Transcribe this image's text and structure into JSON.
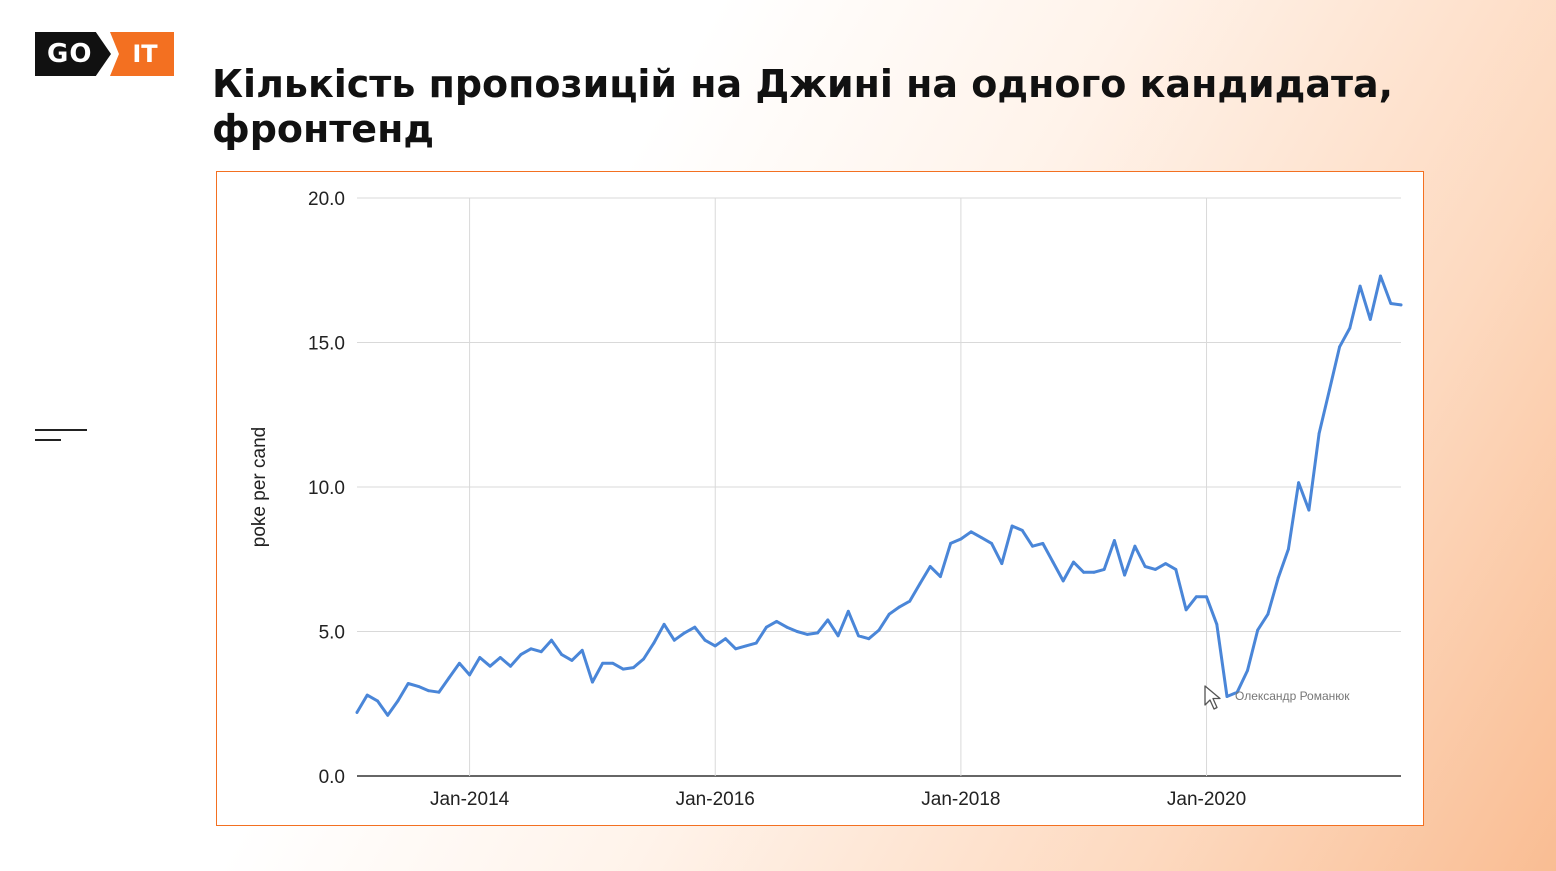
{
  "logo": {
    "left": "GO",
    "right": "IT"
  },
  "title": "Кількість пропозицій на Джині на одного кандидата, фронтенд",
  "colors": {
    "accent": "#f37021",
    "line": "#4a86d8",
    "grid": "#d9d9d9"
  },
  "chart_data": {
    "type": "line",
    "title": "",
    "xlabel": "",
    "ylabel": "poke per cand",
    "ylim": [
      0,
      20
    ],
    "xlim": [
      "2013-02",
      "2021-08"
    ],
    "y_ticks": [
      "0.0",
      "5.0",
      "10.0",
      "15.0",
      "20.0"
    ],
    "x_ticks": [
      {
        "label": "Jan-2014",
        "date": "2014-01"
      },
      {
        "label": "Jan-2016",
        "date": "2016-01"
      },
      {
        "label": "Jan-2018",
        "date": "2018-01"
      },
      {
        "label": "Jan-2020",
        "date": "2020-01"
      }
    ],
    "grid": true,
    "legend": "none",
    "series": [
      {
        "x": [
          "2013-02",
          "2013-03",
          "2013-04",
          "2013-05",
          "2013-06",
          "2013-07",
          "2013-08",
          "2013-09",
          "2013-10",
          "2013-11",
          "2013-12",
          "2014-01",
          "2014-02",
          "2014-03",
          "2014-04",
          "2014-05",
          "2014-06",
          "2014-07",
          "2014-08",
          "2014-09",
          "2014-10",
          "2014-11",
          "2014-12",
          "2015-01",
          "2015-02",
          "2015-03",
          "2015-04",
          "2015-05",
          "2015-06",
          "2015-07",
          "2015-08",
          "2015-09",
          "2015-10",
          "2015-11",
          "2015-12",
          "2016-01",
          "2016-02",
          "2016-03",
          "2016-04",
          "2016-05",
          "2016-06",
          "2016-07",
          "2016-08",
          "2016-09",
          "2016-10",
          "2016-11",
          "2016-12",
          "2017-01",
          "2017-02",
          "2017-03",
          "2017-04",
          "2017-05",
          "2017-06",
          "2017-07",
          "2017-08",
          "2017-09",
          "2017-10",
          "2017-11",
          "2017-12",
          "2018-01",
          "2018-02",
          "2018-03",
          "2018-04",
          "2018-05",
          "2018-06",
          "2018-07",
          "2018-08",
          "2018-09",
          "2018-10",
          "2018-11",
          "2018-12",
          "2019-01",
          "2019-02",
          "2019-03",
          "2019-04",
          "2019-05",
          "2019-06",
          "2019-07",
          "2019-08",
          "2019-09",
          "2019-10",
          "2019-11",
          "2019-12",
          "2020-01",
          "2020-02",
          "2020-03",
          "2020-04",
          "2020-05",
          "2020-06",
          "2020-07",
          "2020-08",
          "2020-09",
          "2020-10",
          "2020-11",
          "2020-12",
          "2021-01",
          "2021-02",
          "2021-03",
          "2021-04",
          "2021-05",
          "2021-06",
          "2021-07",
          "2021-08"
        ],
        "y": [
          2.2,
          2.8,
          2.6,
          2.1,
          2.6,
          3.2,
          3.1,
          2.95,
          2.9,
          3.4,
          3.9,
          3.5,
          4.1,
          3.8,
          4.1,
          3.8,
          4.2,
          4.4,
          4.3,
          4.7,
          4.2,
          4.0,
          4.35,
          3.25,
          3.9,
          3.9,
          3.7,
          3.75,
          4.05,
          4.6,
          5.25,
          4.7,
          4.95,
          5.15,
          4.7,
          4.5,
          4.75,
          4.4,
          4.5,
          4.6,
          5.15,
          5.35,
          5.15,
          5.0,
          4.9,
          4.95,
          5.4,
          4.85,
          5.7,
          4.85,
          4.75,
          5.05,
          5.6,
          5.85,
          6.05,
          6.65,
          7.25,
          6.9,
          8.05,
          8.2,
          8.45,
          8.25,
          8.05,
          7.35,
          8.65,
          8.5,
          7.95,
          8.05,
          7.4,
          6.75,
          7.4,
          7.05,
          7.05,
          7.15,
          8.15,
          6.95,
          7.95,
          7.25,
          7.15,
          7.35,
          7.15,
          5.75,
          6.2,
          6.2,
          5.25,
          2.75,
          2.9,
          3.65,
          5.05,
          5.6,
          6.85,
          7.85,
          10.15,
          9.2,
          11.85,
          13.35,
          14.85,
          15.5,
          16.95,
          15.8,
          17.3,
          16.35,
          16.3
        ]
      }
    ]
  },
  "watermark": {
    "text": "Олександр Романюк",
    "icon": "cursor-arrow-icon"
  }
}
